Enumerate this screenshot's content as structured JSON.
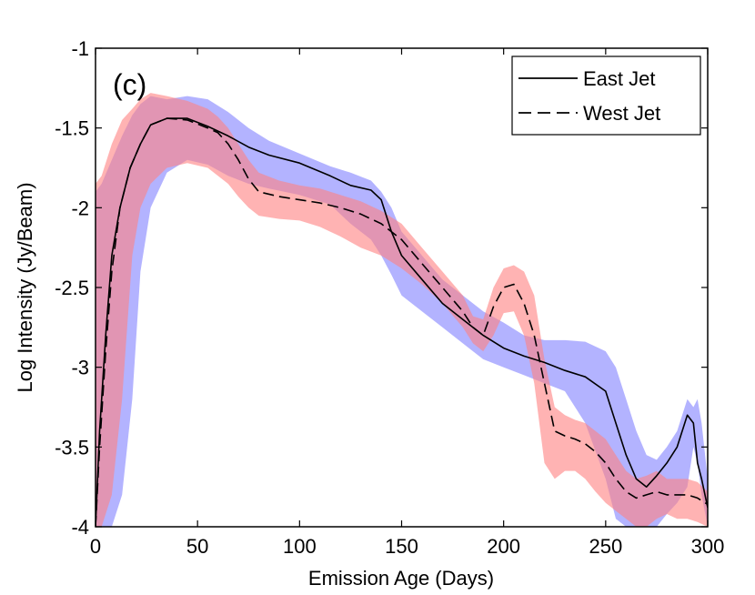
{
  "chart_data": {
    "type": "line",
    "panel_label": "(c)",
    "xlabel": "Emission Age (Days)",
    "ylabel": "Log Intensity (Jy/Beam)",
    "xlim": [
      0,
      300
    ],
    "ylim": [
      -4,
      -1
    ],
    "xticks": [
      0,
      50,
      100,
      150,
      200,
      250,
      300
    ],
    "yticks": [
      -4,
      -3.5,
      -3,
      -2.5,
      -2,
      -1.5,
      -1
    ],
    "xtick_labels": [
      "0",
      "50",
      "100",
      "150",
      "200",
      "250",
      "300"
    ],
    "ytick_labels": [
      "-4",
      "-3.5",
      "-3",
      "-2.5",
      "-2",
      "-1.5",
      "-1"
    ],
    "legend": {
      "position": "top-right",
      "entries": [
        "East Jet",
        "West Jet"
      ]
    },
    "colors": {
      "east_band": "#8080ff",
      "west_band": "#ff8080",
      "line": "#000000",
      "band_opacity": 0.6
    },
    "series": [
      {
        "name": "East Jet",
        "style": "solid",
        "x": [
          0,
          2,
          5,
          8,
          12,
          17,
          22,
          27,
          35,
          45,
          55,
          65,
          75,
          85,
          100,
          115,
          125,
          135,
          140,
          145,
          150,
          160,
          170,
          180,
          190,
          200,
          210,
          220,
          230,
          240,
          250,
          255,
          260,
          265,
          270,
          275,
          280,
          285,
          290,
          293,
          295,
          297,
          300
        ],
        "values": [
          -4.0,
          -3.4,
          -2.8,
          -2.3,
          -2.0,
          -1.75,
          -1.6,
          -1.48,
          -1.44,
          -1.44,
          -1.49,
          -1.55,
          -1.62,
          -1.67,
          -1.72,
          -1.8,
          -1.86,
          -1.89,
          -1.95,
          -2.15,
          -2.3,
          -2.45,
          -2.6,
          -2.7,
          -2.8,
          -2.88,
          -2.93,
          -2.97,
          -3.02,
          -3.06,
          -3.15,
          -3.35,
          -3.55,
          -3.7,
          -3.75,
          -3.68,
          -3.6,
          -3.5,
          -3.3,
          -3.35,
          -3.6,
          -3.7,
          -3.88
        ]
      },
      {
        "name": "West Jet",
        "style": "dashed",
        "x": [
          0,
          2,
          5,
          8,
          12,
          17,
          22,
          27,
          35,
          45,
          55,
          60,
          65,
          70,
          75,
          80,
          90,
          100,
          110,
          120,
          130,
          140,
          150,
          160,
          170,
          180,
          185,
          190,
          195,
          200,
          205,
          210,
          215,
          220,
          225,
          230,
          235,
          240,
          245,
          250,
          255,
          260,
          265,
          270,
          275,
          280,
          285,
          290,
          295,
          300
        ],
        "values": [
          -4.0,
          -3.5,
          -2.9,
          -2.4,
          -2.0,
          -1.75,
          -1.6,
          -1.48,
          -1.44,
          -1.45,
          -1.5,
          -1.53,
          -1.6,
          -1.7,
          -1.82,
          -1.9,
          -1.93,
          -1.95,
          -1.97,
          -2.0,
          -2.04,
          -2.1,
          -2.2,
          -2.35,
          -2.5,
          -2.65,
          -2.75,
          -2.8,
          -2.62,
          -2.5,
          -2.48,
          -2.6,
          -2.8,
          -3.1,
          -3.4,
          -3.43,
          -3.45,
          -3.48,
          -3.53,
          -3.6,
          -3.7,
          -3.78,
          -3.82,
          -3.8,
          -3.78,
          -3.8,
          -3.8,
          -3.8,
          -3.82,
          -3.86
        ]
      }
    ],
    "bands": [
      {
        "name": "East Jet uncertainty",
        "x": [
          0,
          3,
          8,
          13,
          18,
          22,
          27,
          35,
          45,
          55,
          65,
          75,
          85,
          100,
          115,
          125,
          135,
          140,
          145,
          150,
          160,
          170,
          180,
          190,
          200,
          210,
          220,
          230,
          240,
          250,
          255,
          260,
          265,
          270,
          275,
          280,
          285,
          290,
          293,
          295,
          297,
          300
        ],
        "upper": [
          -1.9,
          -1.85,
          -1.7,
          -1.55,
          -1.42,
          -1.35,
          -1.3,
          -1.32,
          -1.3,
          -1.32,
          -1.4,
          -1.5,
          -1.58,
          -1.66,
          -1.74,
          -1.78,
          -1.83,
          -1.9,
          -2.0,
          -2.15,
          -2.3,
          -2.45,
          -2.55,
          -2.65,
          -2.72,
          -2.8,
          -2.83,
          -2.83,
          -2.84,
          -2.9,
          -3.0,
          -3.2,
          -3.4,
          -3.55,
          -3.58,
          -3.5,
          -3.4,
          -3.2,
          -3.25,
          -3.2,
          -3.35,
          -3.7
        ],
        "lower": [
          -4.0,
          -4.0,
          -4.0,
          -3.8,
          -3.2,
          -2.4,
          -2.0,
          -1.78,
          -1.7,
          -1.73,
          -1.8,
          -1.85,
          -1.88,
          -1.92,
          -1.98,
          -2.1,
          -2.2,
          -2.3,
          -2.42,
          -2.55,
          -2.65,
          -2.75,
          -2.85,
          -2.95,
          -3.0,
          -3.05,
          -3.1,
          -3.15,
          -3.35,
          -3.7,
          -3.95,
          -4.0,
          -4.0,
          -4.0,
          -4.0,
          -3.92,
          -3.85,
          -3.75,
          -3.5,
          -3.6,
          -3.8,
          -4.0
        ]
      },
      {
        "name": "West Jet uncertainty",
        "x": [
          0,
          3,
          8,
          13,
          18,
          22,
          27,
          35,
          45,
          55,
          60,
          65,
          70,
          75,
          80,
          90,
          100,
          110,
          120,
          130,
          140,
          150,
          160,
          170,
          180,
          185,
          190,
          195,
          200,
          205,
          210,
          215,
          220,
          225,
          230,
          235,
          240,
          245,
          250,
          255,
          260,
          265,
          270,
          275,
          280,
          285,
          290,
          295,
          300
        ],
        "upper": [
          -1.85,
          -1.8,
          -1.6,
          -1.45,
          -1.38,
          -1.32,
          -1.28,
          -1.3,
          -1.33,
          -1.38,
          -1.43,
          -1.5,
          -1.6,
          -1.7,
          -1.78,
          -1.83,
          -1.86,
          -1.88,
          -1.92,
          -1.96,
          -2.02,
          -2.1,
          -2.25,
          -2.4,
          -2.55,
          -2.68,
          -2.7,
          -2.5,
          -2.38,
          -2.36,
          -2.4,
          -2.55,
          -2.95,
          -3.25,
          -3.3,
          -3.33,
          -3.35,
          -3.4,
          -3.45,
          -3.55,
          -3.65,
          -3.7,
          -3.68,
          -3.65,
          -3.7,
          -3.7,
          -3.7,
          -3.72,
          -3.78
        ],
        "lower": [
          -4.0,
          -4.0,
          -3.8,
          -3.2,
          -2.3,
          -2.0,
          -1.85,
          -1.75,
          -1.72,
          -1.75,
          -1.8,
          -1.85,
          -1.93,
          -2.0,
          -2.05,
          -2.07,
          -2.08,
          -2.12,
          -2.18,
          -2.25,
          -2.3,
          -2.38,
          -2.48,
          -2.6,
          -2.75,
          -2.85,
          -2.9,
          -2.8,
          -2.66,
          -2.65,
          -2.8,
          -3.1,
          -3.6,
          -3.7,
          -3.65,
          -3.65,
          -3.7,
          -3.78,
          -3.85,
          -3.9,
          -3.95,
          -4.0,
          -4.0,
          -3.95,
          -3.92,
          -3.95,
          -3.95,
          -3.97,
          -4.0
        ]
      }
    ]
  }
}
